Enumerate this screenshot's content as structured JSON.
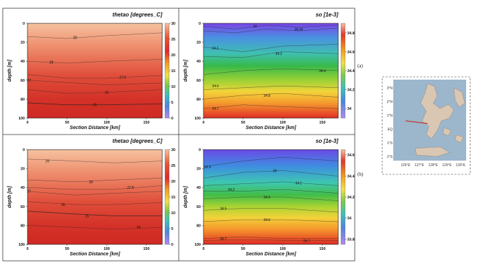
{
  "labels": {
    "a": "(a)",
    "b": "(b)"
  },
  "panels": [
    {
      "id": "a-thetao",
      "title": "thetao [degrees_C]",
      "var": "thetao",
      "cbar_ticks": [
        "30",
        "25",
        "20",
        "15",
        "10",
        "5",
        "0"
      ]
    },
    {
      "id": "a-so",
      "title": "so [1e-3]",
      "var": "so",
      "cbar_ticks": [
        "34.8",
        "34.6",
        "34.4",
        "34.2",
        "34"
      ]
    },
    {
      "id": "b-thetao",
      "title": "thetao [degrees_C]",
      "var": "thetao",
      "cbar_ticks": [
        "30",
        "25",
        "20",
        "15",
        "10",
        "5",
        "0"
      ]
    },
    {
      "id": "b-so",
      "title": "so [1e-3]",
      "var": "so",
      "cbar_ticks": [
        "34.6",
        "34.4",
        "34.2",
        "34",
        "33.8"
      ]
    }
  ],
  "inset_map": {
    "lat_labels": [
      "3°N",
      "2°N",
      "1°N",
      "EQ",
      "1°S",
      "2°S"
    ],
    "lon_labels": [
      "126°E",
      "127°E",
      "128°E",
      "129°E",
      "130°E"
    ]
  },
  "chart_data": [
    {
      "panel": "a-thetao",
      "type": "heatmap",
      "title": "thetao [degrees_C]",
      "xlabel": "Section Distance [km]",
      "ylabel": "depth [m]",
      "xlim": [
        0,
        170
      ],
      "ylim": [
        100,
        0
      ],
      "x_ticks": [
        "0",
        "50",
        "100",
        "150"
      ],
      "y_ticks": [
        "0",
        "20",
        "40",
        "60",
        "80",
        "100"
      ],
      "colorbar": {
        "range": [
          0,
          30
        ],
        "ticks": [
          30,
          25,
          20,
          15,
          10,
          5,
          0
        ]
      },
      "contours": [
        {
          "level": "29",
          "points": [
            [
              0,
              14
            ],
            [
              50,
              16
            ],
            [
              100,
              13
            ],
            [
              170,
              10
            ]
          ],
          "label_at": [
            60,
            15
          ]
        },
        {
          "level": "28",
          "points": [
            [
              0,
              40
            ],
            [
              50,
              42
            ],
            [
              100,
              40
            ],
            [
              170,
              38
            ]
          ],
          "label_at": [
            30,
            41
          ]
        },
        {
          "level": "27.5",
          "points": [
            [
              0,
              54
            ],
            [
              50,
              58
            ],
            [
              100,
              58
            ],
            [
              170,
              55
            ]
          ],
          "label_at": [
            120,
            57
          ]
        },
        {
          "level": "27",
          "points": [
            [
              0,
              60
            ],
            [
              40,
              62
            ],
            [
              100,
              65
            ],
            [
              170,
              63
            ]
          ],
          "label_at": [
            2,
            60
          ]
        },
        {
          "level": "26",
          "points": [
            [
              0,
              70
            ],
            [
              50,
              74
            ],
            [
              100,
              73
            ],
            [
              170,
              70
            ]
          ],
          "label_at": [
            100,
            73
          ]
        },
        {
          "level": "25",
          "points": [
            [
              0,
              84
            ],
            [
              50,
              86
            ],
            [
              100,
              86
            ],
            [
              170,
              85
            ]
          ],
          "label_at": [
            85,
            86
          ]
        }
      ]
    },
    {
      "panel": "a-so",
      "type": "heatmap",
      "title": "so [1e-3]",
      "xlabel": "Section Distance [km]",
      "ylabel": "depth [m]",
      "xlim": [
        0,
        170
      ],
      "ylim": [
        100,
        0
      ],
      "x_ticks": [
        "0",
        "50",
        "100",
        "150"
      ],
      "y_ticks": [
        "0",
        "20",
        "40",
        "60",
        "80",
        "100"
      ],
      "colorbar": {
        "range": [
          33.9,
          34.9
        ],
        "ticks": [
          34.8,
          34.6,
          34.4,
          34.2,
          34
        ]
      },
      "contours": [
        {
          "level": "34",
          "points": [
            [
              0,
              3
            ],
            [
              40,
              6
            ],
            [
              80,
              2
            ],
            [
              120,
              4
            ],
            [
              170,
              2
            ]
          ],
          "label_at": [
            65,
            3
          ]
        },
        {
          "level": "34.04",
          "points": [
            [
              0,
              8
            ],
            [
              40,
              10
            ],
            [
              80,
              6
            ],
            [
              120,
              8
            ],
            [
              170,
              5
            ]
          ],
          "label_at": [
            120,
            6
          ]
        },
        {
          "level": "34.1",
          "points": [
            [
              0,
              25
            ],
            [
              50,
              30
            ],
            [
              100,
              24
            ],
            [
              170,
              22
            ]
          ],
          "label_at": [
            15,
            26
          ]
        },
        {
          "level": "34.2",
          "points": [
            [
              0,
              35
            ],
            [
              50,
              36
            ],
            [
              100,
              30
            ],
            [
              170,
              32
            ]
          ],
          "label_at": [
            95,
            32
          ]
        },
        {
          "level": "34.4",
          "points": [
            [
              0,
              54
            ],
            [
              50,
              50
            ],
            [
              100,
              48
            ],
            [
              170,
              50
            ]
          ],
          "label_at": [
            150,
            50
          ]
        },
        {
          "level": "34.6",
          "points": [
            [
              0,
              70
            ],
            [
              50,
              68
            ],
            [
              100,
              66
            ],
            [
              170,
              68
            ]
          ],
          "label_at": [
            15,
            66
          ]
        },
        {
          "level": "34.8",
          "points": [
            [
              0,
              80
            ],
            [
              50,
              76
            ],
            [
              100,
              74
            ],
            [
              170,
              78
            ]
          ],
          "label_at": [
            80,
            76
          ]
        },
        {
          "level": "34.7",
          "points": [
            [
              0,
              90
            ],
            [
              50,
              86
            ],
            [
              100,
              88
            ],
            [
              170,
              90
            ]
          ],
          "label_at": [
            15,
            90
          ]
        }
      ]
    },
    {
      "panel": "b-thetao",
      "type": "heatmap",
      "title": "thetao [degrees_C]",
      "xlabel": "Section Distance [km]",
      "ylabel": "depth [m]",
      "xlim": [
        0,
        170
      ],
      "ylim": [
        100,
        0
      ],
      "x_ticks": [
        "0",
        "50",
        "100",
        "150"
      ],
      "y_ticks": [
        "0",
        "20",
        "40",
        "60",
        "80",
        "100"
      ],
      "colorbar": {
        "range": [
          0,
          30
        ],
        "ticks": [
          30,
          25,
          20,
          15,
          10,
          5,
          0
        ]
      },
      "contours": [
        {
          "level": "29",
          "points": [
            [
              0,
              10
            ],
            [
              60,
              12
            ],
            [
              110,
              14
            ],
            [
              170,
              12
            ]
          ],
          "label_at": [
            25,
            12
          ]
        },
        {
          "level": "28",
          "points": [
            [
              0,
              32
            ],
            [
              60,
              34
            ],
            [
              110,
              32
            ],
            [
              170,
              30
            ]
          ],
          "label_at": [
            80,
            34
          ]
        },
        {
          "level": "27.5",
          "points": [
            [
              0,
              40
            ],
            [
              60,
              42
            ],
            [
              110,
              42
            ],
            [
              170,
              38
            ]
          ],
          "label_at": [
            130,
            40
          ]
        },
        {
          "level": "27",
          "points": [
            [
              0,
              44
            ],
            [
              60,
              48
            ],
            [
              110,
              46
            ],
            [
              170,
              44
            ]
          ],
          "label_at": [
            2,
            44
          ]
        },
        {
          "level": "26",
          "points": [
            [
              0,
              55
            ],
            [
              60,
              58
            ],
            [
              110,
              58
            ],
            [
              170,
              56
            ]
          ],
          "label_at": [
            45,
            58
          ]
        },
        {
          "level": "25",
          "points": [
            [
              0,
              65
            ],
            [
              60,
              68
            ],
            [
              110,
              70
            ],
            [
              170,
              70
            ]
          ],
          "label_at": [
            75,
            70
          ]
        },
        {
          "level": "24",
          "points": [
            [
              0,
              80
            ],
            [
              60,
              82
            ],
            [
              110,
              84
            ],
            [
              170,
              82
            ]
          ],
          "label_at": [
            140,
            82
          ]
        }
      ]
    },
    {
      "panel": "b-so",
      "type": "heatmap",
      "title": "so [1e-3]",
      "xlabel": "Section Distance [km]",
      "ylabel": "depth [m]",
      "xlim": [
        0,
        170
      ],
      "ylim": [
        100,
        0
      ],
      "x_ticks": [
        "0",
        "50",
        "100",
        "150"
      ],
      "y_ticks": [
        "0",
        "20",
        "40",
        "60",
        "80",
        "100"
      ],
      "colorbar": {
        "range": [
          33.75,
          34.65
        ],
        "ticks": [
          34.6,
          34.4,
          34.2,
          34,
          33.8
        ]
      },
      "contours": [
        {
          "level": "33.9",
          "points": [
            [
              0,
              18
            ],
            [
              50,
              12
            ],
            [
              100,
              8
            ],
            [
              170,
              12
            ]
          ],
          "label_at": [
            5,
            18
          ]
        },
        {
          "level": "34",
          "points": [
            [
              0,
              30
            ],
            [
              50,
              24
            ],
            [
              100,
              22
            ],
            [
              170,
              28
            ]
          ],
          "label_at": [
            90,
            22
          ]
        },
        {
          "level": "34.1",
          "points": [
            [
              0,
              38
            ],
            [
              50,
              36
            ],
            [
              100,
              34
            ],
            [
              170,
              38
            ]
          ],
          "label_at": [
            120,
            35
          ]
        },
        {
          "level": "34.2",
          "points": [
            [
              0,
              44
            ],
            [
              50,
              44
            ],
            [
              100,
              42
            ],
            [
              170,
              46
            ]
          ],
          "label_at": [
            35,
            42
          ]
        },
        {
          "level": "34.3",
          "points": [
            [
              0,
              52
            ],
            [
              50,
              50
            ],
            [
              100,
              50
            ],
            [
              170,
              54
            ]
          ],
          "label_at": [
            80,
            50
          ]
        },
        {
          "level": "34.5",
          "points": [
            [
              0,
              64
            ],
            [
              50,
              62
            ],
            [
              100,
              62
            ],
            [
              170,
              66
            ]
          ],
          "label_at": [
            25,
            62
          ]
        },
        {
          "level": "34.6",
          "points": [
            [
              0,
              76
            ],
            [
              50,
              74
            ],
            [
              100,
              74
            ],
            [
              170,
              76
            ]
          ],
          "label_at": [
            80,
            74
          ]
        },
        {
          "level": "34.7",
          "points": [
            [
              0,
              94
            ],
            [
              50,
              92
            ],
            [
              100,
              94
            ],
            [
              170,
              94
            ]
          ],
          "label_at": [
            25,
            94
          ]
        },
        {
          "level": "34.7",
          "points": [
            [
              0,
              96
            ],
            [
              60,
              95
            ],
            [
              110,
              96
            ],
            [
              170,
              96
            ]
          ],
          "label_at": [
            130,
            96
          ]
        }
      ]
    }
  ],
  "colors": {
    "panel_border": "#333333",
    "section_line": "#c0392b",
    "map_sea": "#9cb6cc",
    "map_land": "#d9c7b3"
  }
}
